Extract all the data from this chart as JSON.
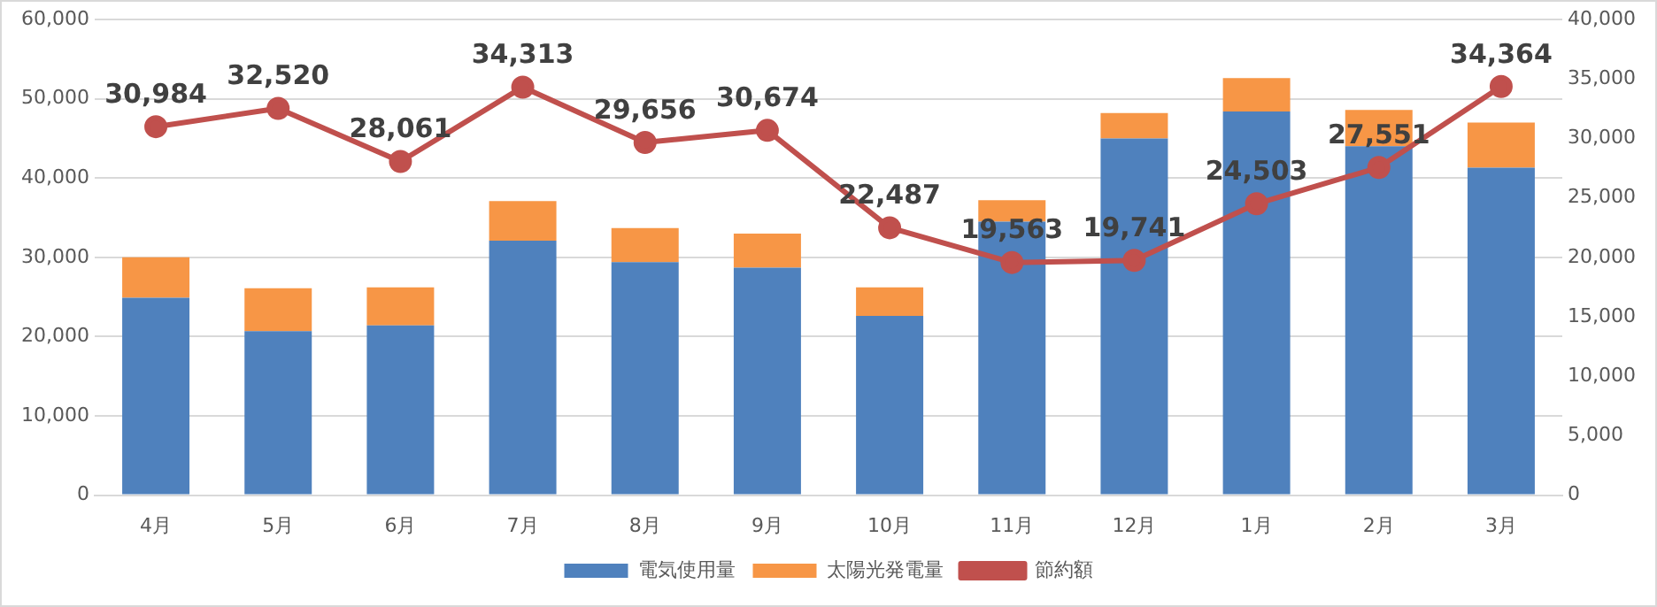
{
  "chart_data": {
    "type": "bar",
    "stacked": true,
    "categories": [
      "4月",
      "5月",
      "6月",
      "7月",
      "8月",
      "9月",
      "10月",
      "11月",
      "12月",
      "1月",
      "2月",
      "3月"
    ],
    "series": [
      {
        "name": "電気使用量",
        "color": "#4f81bd",
        "values": [
          24900,
          20700,
          21400,
          32100,
          29400,
          28700,
          22600,
          34500,
          45000,
          48400,
          44000,
          41300
        ]
      },
      {
        "name": "太陽光発電量",
        "color": "#f79646",
        "values": [
          5100,
          5400,
          4800,
          5000,
          4300,
          4300,
          3600,
          2700,
          3200,
          4200,
          4600,
          5700
        ]
      },
      {
        "name": "節約額",
        "type": "line",
        "axis": "y2",
        "color": "#c0504d",
        "marker": "circle",
        "values": [
          30984,
          32520,
          28061,
          34313,
          29656,
          30674,
          22487,
          19563,
          19741,
          24503,
          27551,
          34364
        ],
        "value_labels": [
          "30,984",
          "32,520",
          "28,061",
          "34,313",
          "29,656",
          "30,674",
          "22,487",
          "19,563",
          "19,741",
          "24,503",
          "27,551",
          "34,364"
        ]
      }
    ],
    "ylim": [
      0,
      60000
    ],
    "yticks": [
      {
        "value": 0,
        "label": "0"
      },
      {
        "value": 10000,
        "label": "10,000"
      },
      {
        "value": 20000,
        "label": "20,000"
      },
      {
        "value": 30000,
        "label": "30,000"
      },
      {
        "value": 40000,
        "label": "40,000"
      },
      {
        "value": 50000,
        "label": "50,000"
      },
      {
        "value": 60000,
        "label": "60,000"
      }
    ],
    "y2lim": [
      0,
      40000
    ],
    "y2ticks": [
      {
        "value": 0,
        "label": "0"
      },
      {
        "value": 5000,
        "label": "5,000"
      },
      {
        "value": 10000,
        "label": "10,000"
      },
      {
        "value": 15000,
        "label": "15,000"
      },
      {
        "value": 20000,
        "label": "20,000"
      },
      {
        "value": 25000,
        "label": "25,000"
      },
      {
        "value": 30000,
        "label": "30,000"
      },
      {
        "value": 35000,
        "label": "35,000"
      },
      {
        "value": 40000,
        "label": "40,000"
      }
    ],
    "grid": "y",
    "legend": "bottom"
  }
}
